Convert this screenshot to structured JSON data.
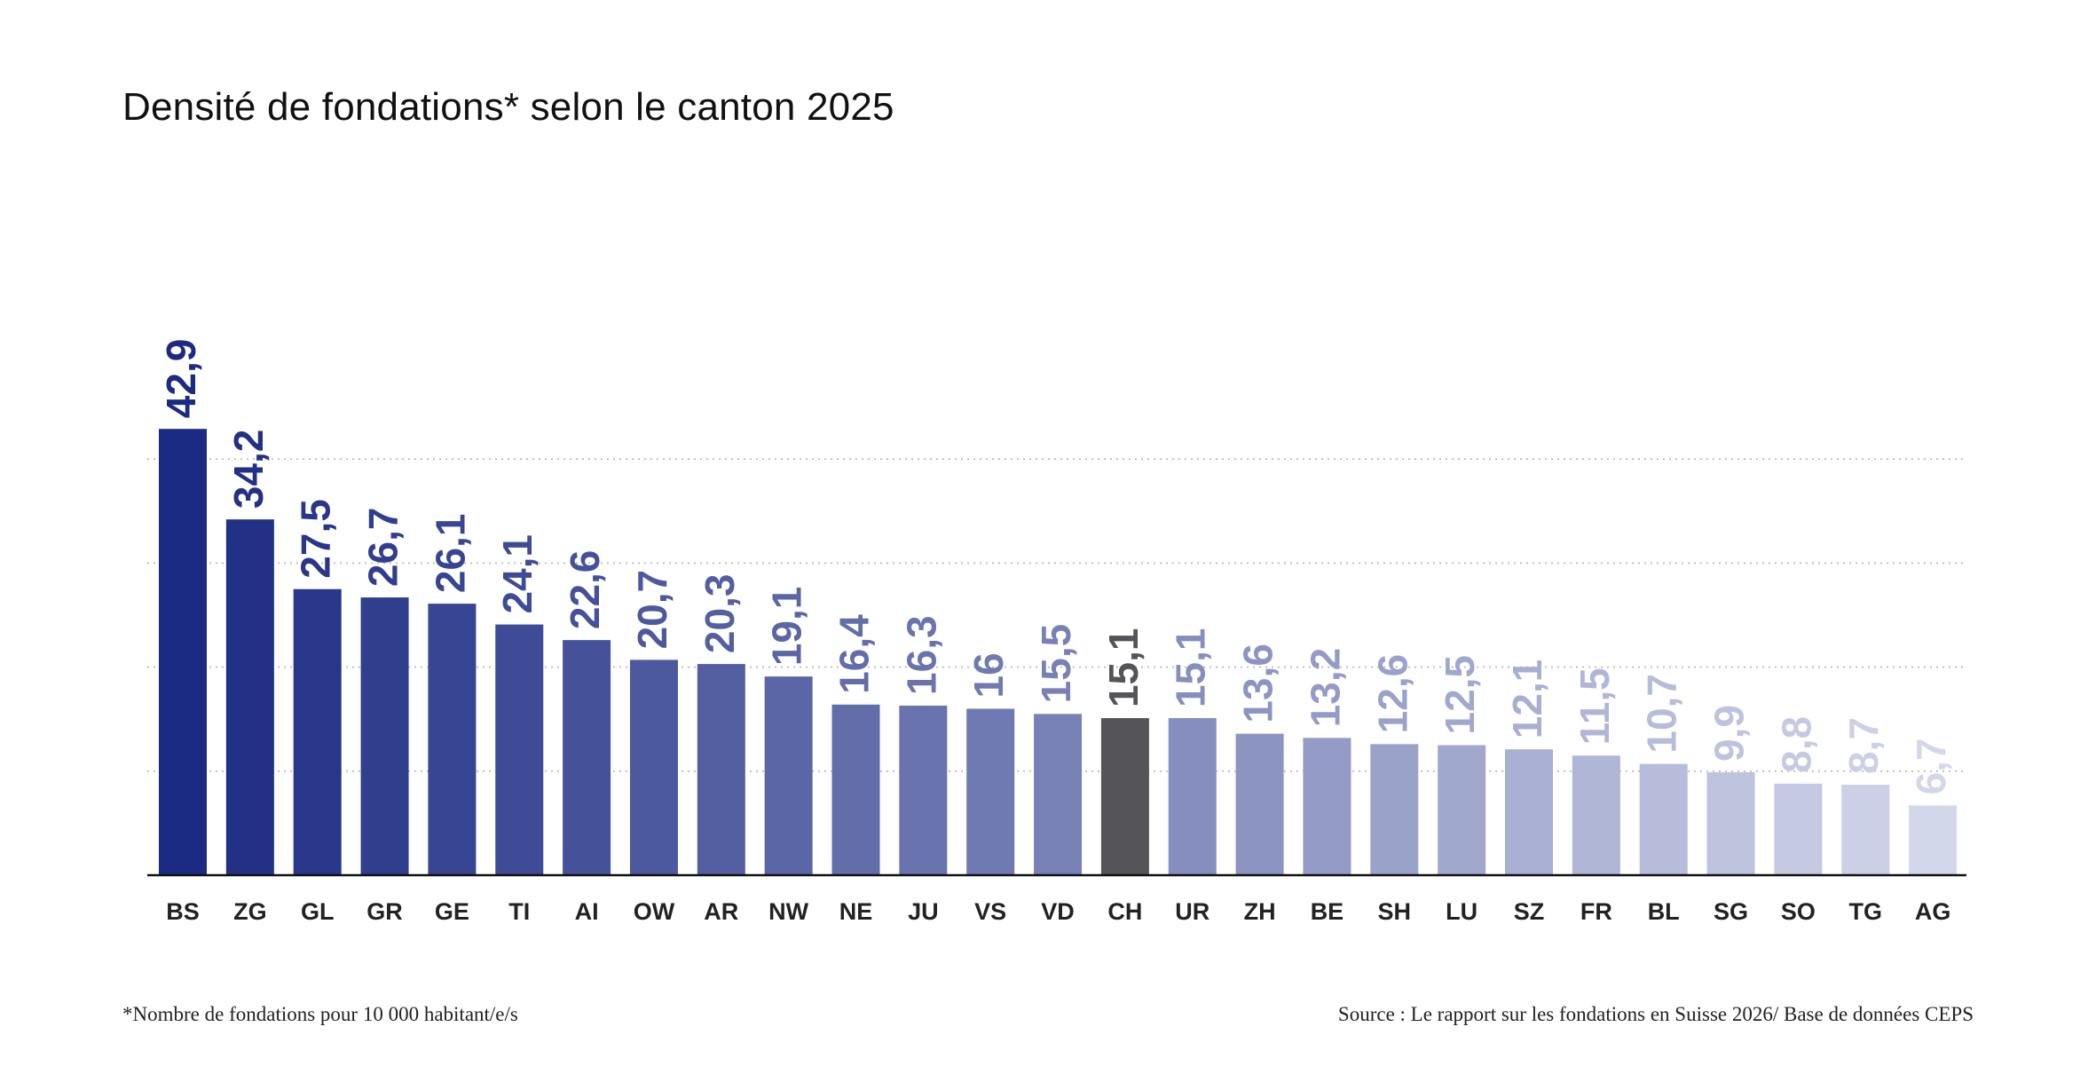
{
  "chart_data": {
    "type": "bar",
    "title": "Densité de fondations* selon le canton 2025",
    "categories": [
      "BS",
      "ZG",
      "GL",
      "GR",
      "GE",
      "TI",
      "AI",
      "OW",
      "AR",
      "NW",
      "NE",
      "JU",
      "VS",
      "VD",
      "CH",
      "UR",
      "ZH",
      "BE",
      "SH",
      "LU",
      "SZ",
      "FR",
      "BL",
      "SG",
      "SO",
      "TG",
      "AG"
    ],
    "values": [
      42.9,
      34.2,
      27.5,
      26.7,
      26.1,
      24.1,
      22.6,
      20.7,
      20.3,
      19.1,
      16.4,
      16.3,
      16,
      15.5,
      15.1,
      15.1,
      13.6,
      13.2,
      12.6,
      12.5,
      12.1,
      11.5,
      10.7,
      9.9,
      8.8,
      8.7,
      6.7
    ],
    "value_labels": [
      "42,9",
      "34,2",
      "27,5",
      "26,7",
      "26,1",
      "24,1",
      "22,6",
      "20,7",
      "20,3",
      "19,1",
      "16,4",
      "16,3",
      "16",
      "15,5",
      "15,1",
      "15,1",
      "13,6",
      "13,2",
      "12,6",
      "12,5",
      "12,1",
      "11,5",
      "10,7",
      "9,9",
      "8,8",
      "8,7",
      "6,7"
    ],
    "ylim": [
      0,
      43
    ],
    "gridlines": [
      10,
      20,
      30,
      40
    ],
    "grid": "dotted horizontal",
    "highlight_category": "CH",
    "colors": {
      "gradient_start": "#1b2a82",
      "gradient_end": "#d3d7ea",
      "highlight": "#555559",
      "axis": "#111111",
      "grid": "#b5b5b5",
      "category_label": "#222222"
    },
    "footnote": "*Nombre de fondations pour 10 000 habitant/e/s",
    "source": "Source : Le rapport sur les fondations en Suisse 2026/ Base de données CEPS"
  }
}
